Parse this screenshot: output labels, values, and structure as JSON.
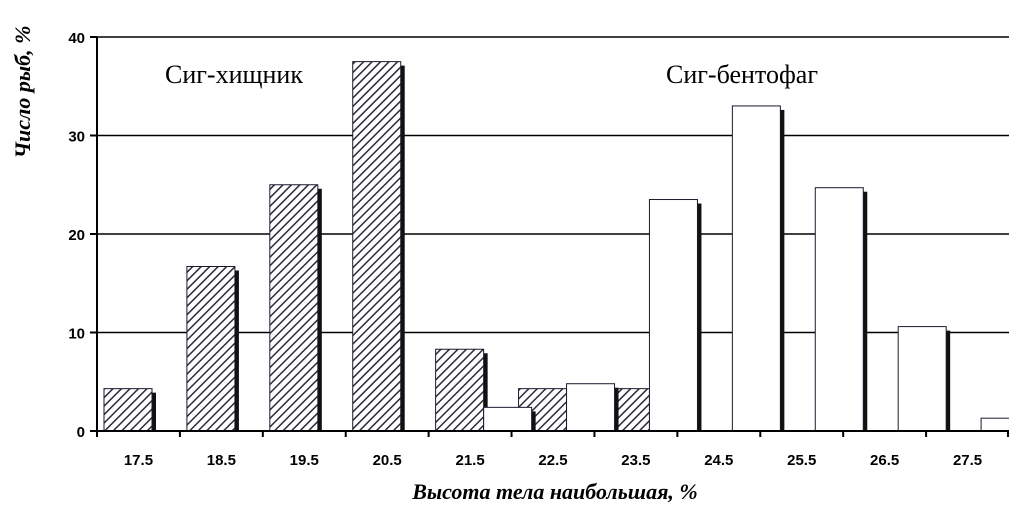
{
  "chart_data": {
    "type": "bar",
    "categories": [
      "17.5",
      "18.5",
      "19.5",
      "20.5",
      "21.5",
      "22.5",
      "23.5",
      "24.5",
      "25.5",
      "26.5",
      "27.5"
    ],
    "series": [
      {
        "name": "Сиг-хищник",
        "pattern": "diagonal-hatch",
        "values": [
          4.3,
          16.7,
          25.0,
          37.5,
          8.3,
          4.3,
          4.3,
          null,
          null,
          null,
          null
        ]
      },
      {
        "name": "Сиг-бентофаг",
        "pattern": "white",
        "values": [
          null,
          null,
          null,
          null,
          2.4,
          4.8,
          23.5,
          33.0,
          24.7,
          10.6,
          1.3
        ]
      }
    ],
    "xlabel": "Высота тела наибольшая, %",
    "ylabel": "Число рыб, %",
    "ylim": [
      0,
      40
    ],
    "yticks": [
      0,
      10,
      20,
      30,
      40
    ],
    "grid": "horizontal",
    "colors": {
      "hatch": "#2b2b3a",
      "bar_fill": "#ffffff",
      "bar_edge": "#1a1a2e",
      "shadow": "#111111",
      "axis": "#000000"
    }
  }
}
